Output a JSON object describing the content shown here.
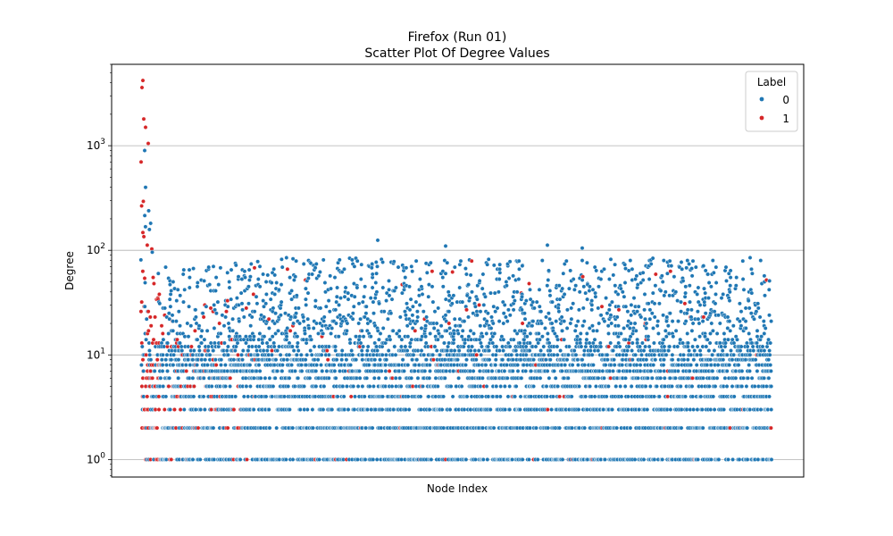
{
  "chart_data": {
    "type": "scatter",
    "title": "Firefox (Run 01)",
    "subtitle": "Scatter Plot Of Degree Values",
    "xlabel": "Node Index",
    "ylabel": "Degree",
    "yscale": "log",
    "ylim": [
      0.68,
      6000
    ],
    "grid": "y-major",
    "y_ticks": [
      {
        "value": 1,
        "base": "10",
        "exp": "0"
      },
      {
        "value": 10,
        "base": "10",
        "exp": "1"
      },
      {
        "value": 100,
        "base": "10",
        "exp": "2"
      },
      {
        "value": 1000,
        "base": "10",
        "exp": "3"
      }
    ],
    "legend": {
      "title": "Label",
      "placement": "top-right",
      "entries": [
        {
          "label": "0",
          "color": "#1f77b4"
        },
        {
          "label": "1",
          "color": "#d62728"
        }
      ]
    },
    "series": [
      {
        "name": "0",
        "color": "#1f77b4"
      },
      {
        "name": "1",
        "color": "#d62728"
      }
    ],
    "highlights": [
      {
        "series": "1",
        "y": 4200
      },
      {
        "series": "1",
        "y": 3600
      },
      {
        "series": "1",
        "y": 1800
      },
      {
        "series": "1",
        "y": 1500
      },
      {
        "series": "1",
        "y": 1050
      },
      {
        "series": "0",
        "y": 900
      },
      {
        "series": "0",
        "y": 125
      },
      {
        "series": "0",
        "y": 110
      },
      {
        "series": "0",
        "y": 112
      },
      {
        "series": "0",
        "y": 105
      },
      {
        "series": "0",
        "y": 1
      }
    ]
  }
}
